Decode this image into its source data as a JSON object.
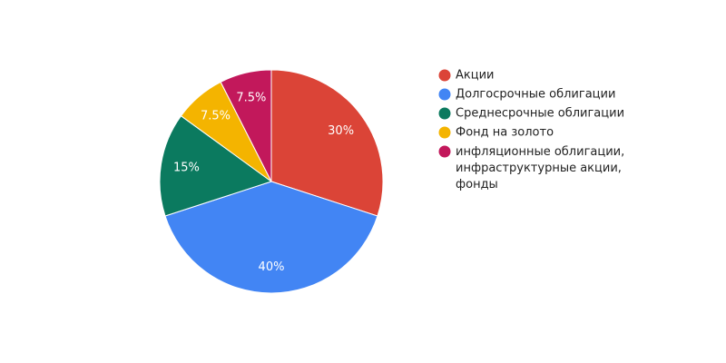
{
  "chart_data": {
    "type": "pie",
    "categories": [
      "Акции",
      "Долгосрочные облигации",
      "Среднесрочные облигации",
      "Фонд на золото",
      "инфляционные облигации, инфраструктурные акции, фонды"
    ],
    "values": [
      30,
      40,
      15,
      7.5,
      7.5
    ],
    "value_labels": [
      "30%",
      "40%",
      "15%",
      "7.5%",
      "7.5%"
    ],
    "colors": [
      "#db4437",
      "#4285f4",
      "#0b7a5f",
      "#f4b400",
      "#c2185b"
    ],
    "legend": "right"
  }
}
